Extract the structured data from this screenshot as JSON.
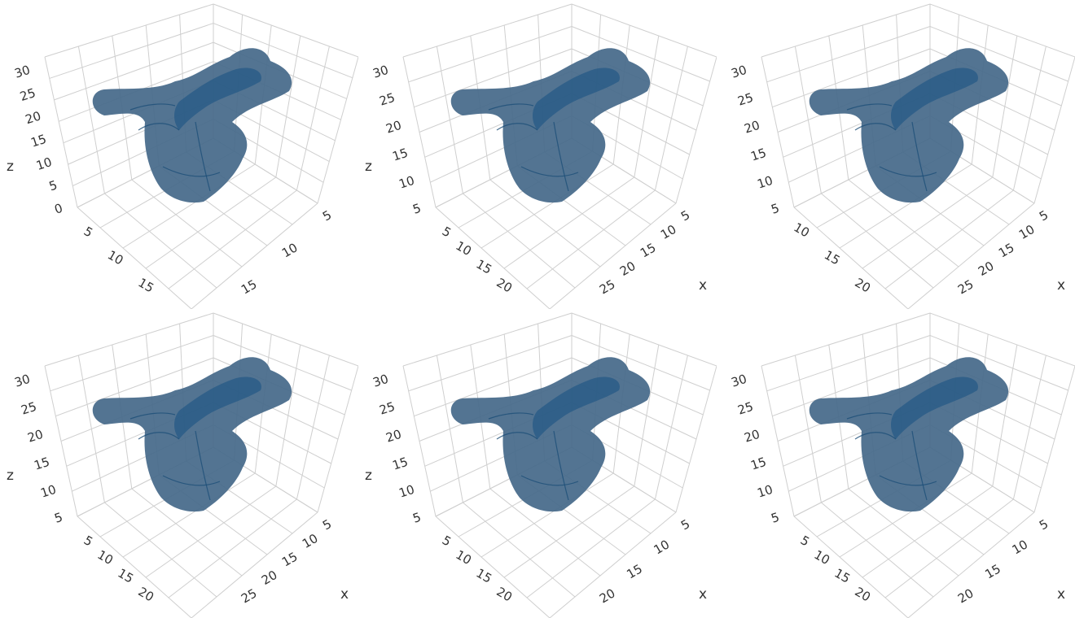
{
  "chart_data": [
    {
      "type": "mesh3d",
      "panel": 1,
      "zlabel": "z",
      "xlabel": "",
      "ylabel": "",
      "z_ticks": [
        "30",
        "25",
        "20",
        "15",
        "10",
        "5",
        "0"
      ],
      "y_ticks": [
        "5",
        "10",
        "15"
      ],
      "x_ticks": [
        "5",
        "10",
        "15"
      ],
      "color": "#46698a"
    },
    {
      "type": "mesh3d",
      "panel": 2,
      "zlabel": "z",
      "xlabel": "x",
      "ylabel": "",
      "z_ticks": [
        "30",
        "25",
        "20",
        "15",
        "10",
        "5"
      ],
      "y_ticks": [
        "5",
        "10",
        "15",
        "20"
      ],
      "x_ticks": [
        "5",
        "10",
        "15",
        "20",
        "25"
      ],
      "color": "#46698a"
    },
    {
      "type": "mesh3d",
      "panel": 3,
      "zlabel": "",
      "xlabel": "x",
      "ylabel": "",
      "z_ticks": [
        "30",
        "25",
        "20",
        "15",
        "10",
        "5"
      ],
      "y_ticks": [
        "10",
        "15",
        "20"
      ],
      "x_ticks": [
        "5",
        "10",
        "15",
        "20",
        "25"
      ],
      "color": "#46698a"
    },
    {
      "type": "mesh3d",
      "panel": 4,
      "zlabel": "z",
      "xlabel": "x",
      "ylabel": "",
      "z_ticks": [
        "30",
        "25",
        "20",
        "15",
        "10",
        "5"
      ],
      "y_ticks": [
        "5",
        "10",
        "15",
        "20"
      ],
      "x_ticks": [
        "5",
        "10",
        "15",
        "20",
        "25"
      ],
      "color": "#46698a"
    },
    {
      "type": "mesh3d",
      "panel": 5,
      "zlabel": "z",
      "xlabel": "x",
      "ylabel": "",
      "z_ticks": [
        "30",
        "25",
        "20",
        "15",
        "10",
        "5"
      ],
      "y_ticks": [
        "5",
        "10",
        "15",
        "20"
      ],
      "x_ticks": [
        "5",
        "10",
        "15",
        "20"
      ],
      "color": "#46698a"
    },
    {
      "type": "mesh3d",
      "panel": 6,
      "zlabel": "",
      "xlabel": "x",
      "ylabel": "",
      "z_ticks": [
        "30",
        "25",
        "20",
        "15",
        "10",
        "5"
      ],
      "y_ticks": [
        "5",
        "10",
        "15",
        "20"
      ],
      "x_ticks": [
        "5",
        "10",
        "15",
        "20"
      ],
      "color": "#46698a"
    }
  ]
}
